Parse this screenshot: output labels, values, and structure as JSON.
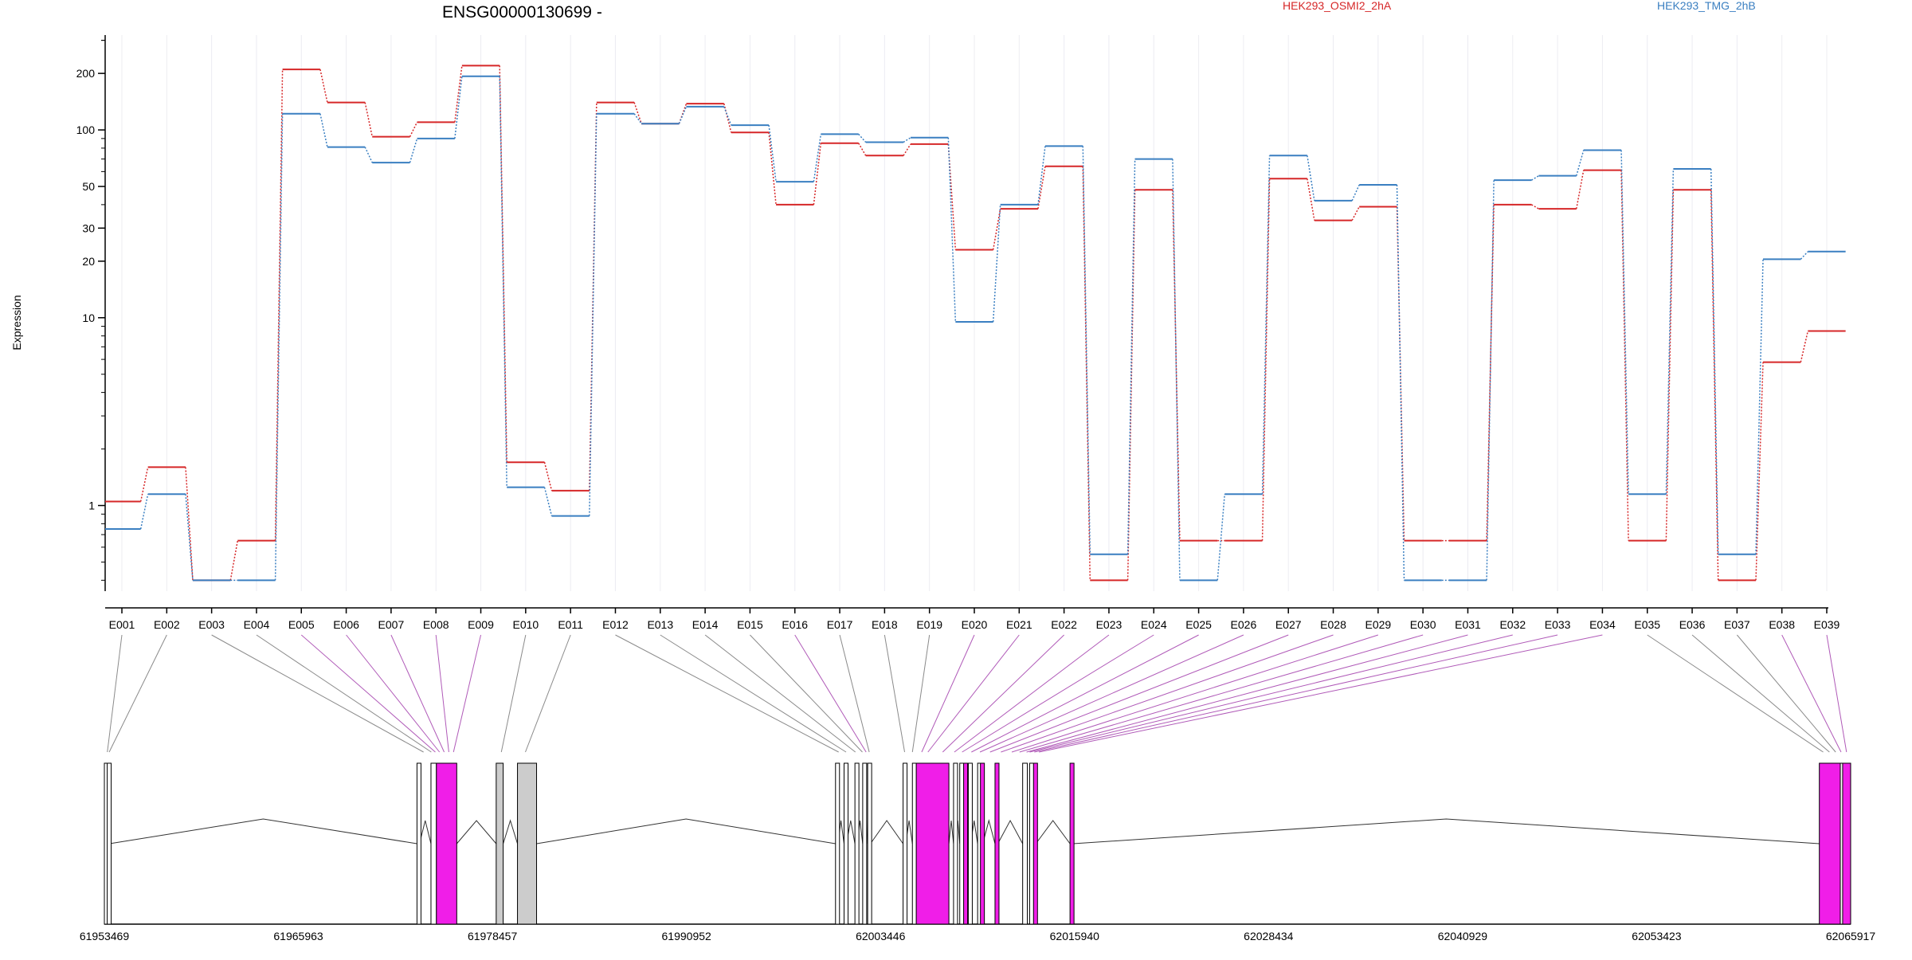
{
  "chart_data": {
    "type": "line",
    "title": "ENSG00000130699 -",
    "ylabel": "Expression",
    "yscale": "log",
    "ylim": [
      0.35,
      320
    ],
    "yticks": [
      1,
      10,
      20,
      30,
      50,
      100,
      200
    ],
    "categories": [
      "E001",
      "E002",
      "E003",
      "E004",
      "E005",
      "E006",
      "E007",
      "E008",
      "E009",
      "E010",
      "E011",
      "E012",
      "E013",
      "E014",
      "E015",
      "E016",
      "E017",
      "E018",
      "E019",
      "E020",
      "E021",
      "E022",
      "E023",
      "E024",
      "E025",
      "E026",
      "E027",
      "E028",
      "E029",
      "E030",
      "E031",
      "E032",
      "E033",
      "E034",
      "E035",
      "E036",
      "E037",
      "E038",
      "E039"
    ],
    "series": [
      {
        "name": "HEK293_OSMI2_2hA",
        "color": "#d62728",
        "values": [
          1.05,
          1.6,
          0.4,
          0.65,
          210,
          140,
          92,
          110,
          220,
          1.7,
          1.2,
          140,
          108,
          138,
          97,
          40,
          85,
          73,
          84,
          23,
          38,
          64,
          0.4,
          48,
          0.65,
          0.65,
          55,
          33,
          39,
          0.65,
          0.65,
          40,
          38,
          61,
          0.65,
          48,
          0.4,
          5.8,
          8.5
        ]
      },
      {
        "name": "HEK293_TMG_2hB",
        "color": "#3a7fc1",
        "values": [
          0.75,
          1.15,
          0.4,
          0.4,
          122,
          81,
          67,
          90,
          193,
          1.25,
          0.88,
          122,
          108,
          133,
          106,
          53,
          95,
          86,
          91,
          9.5,
          40,
          82,
          0.55,
          70,
          0.4,
          1.15,
          73,
          42,
          51,
          0.4,
          0.4,
          54,
          57,
          78,
          1.15,
          62,
          0.55,
          20.5,
          22.5
        ]
      }
    ],
    "genome_axis": {
      "tick_labels": [
        "61953469",
        "61965963",
        "61978457",
        "61990952",
        "62003446",
        "62015940",
        "62028434",
        "62040929",
        "62053423",
        "62065917"
      ]
    },
    "exon_colors": {
      "differential": "#f01ee8",
      "normal": "#ffffff",
      "retained": "#cccccc"
    },
    "exon_connections": [
      {
        "exon": "E001",
        "g": 61953660,
        "hl": false
      },
      {
        "exon": "E002",
        "g": 61953780,
        "hl": false
      },
      {
        "exon": "E003",
        "g": 61974020,
        "hl": false
      },
      {
        "exon": "E004",
        "g": 61974520,
        "hl": false
      },
      {
        "exon": "E005",
        "g": 61974780,
        "hl": true
      },
      {
        "exon": "E006",
        "g": 61975050,
        "hl": true
      },
      {
        "exon": "E007",
        "g": 61975350,
        "hl": true
      },
      {
        "exon": "E008",
        "g": 61975650,
        "hl": true
      },
      {
        "exon": "E009",
        "g": 61975950,
        "hl": true
      },
      {
        "exon": "E010",
        "g": 61979030,
        "hl": false
      },
      {
        "exon": "E011",
        "g": 61980580,
        "hl": false
      },
      {
        "exon": "E012",
        "g": 62000750,
        "hl": false
      },
      {
        "exon": "E013",
        "g": 62001230,
        "hl": false
      },
      {
        "exon": "E014",
        "g": 62001830,
        "hl": false
      },
      {
        "exon": "E015",
        "g": 62002280,
        "hl": false
      },
      {
        "exon": "E016",
        "g": 62002520,
        "hl": true
      },
      {
        "exon": "E017",
        "g": 62002720,
        "hl": false
      },
      {
        "exon": "E018",
        "g": 62005000,
        "hl": false
      },
      {
        "exon": "E019",
        "g": 62005500,
        "hl": false
      },
      {
        "exon": "E020",
        "g": 62006100,
        "hl": true
      },
      {
        "exon": "E021",
        "g": 62006500,
        "hl": true
      },
      {
        "exon": "E022",
        "g": 62007450,
        "hl": true
      },
      {
        "exon": "E023",
        "g": 62008200,
        "hl": true
      },
      {
        "exon": "E024",
        "g": 62008700,
        "hl": true
      },
      {
        "exon": "E025",
        "g": 62009300,
        "hl": true
      },
      {
        "exon": "E026",
        "g": 62009850,
        "hl": true
      },
      {
        "exon": "E027",
        "g": 62010500,
        "hl": true
      },
      {
        "exon": "E028",
        "g": 62011200,
        "hl": true
      },
      {
        "exon": "E029",
        "g": 62011900,
        "hl": true
      },
      {
        "exon": "E030",
        "g": 62012400,
        "hl": true
      },
      {
        "exon": "E031",
        "g": 62012850,
        "hl": true
      },
      {
        "exon": "E032",
        "g": 62013050,
        "hl": true
      },
      {
        "exon": "E033",
        "g": 62013350,
        "hl": true
      },
      {
        "exon": "E034",
        "g": 62013650,
        "hl": true
      },
      {
        "exon": "E035",
        "g": 62064150,
        "hl": false
      },
      {
        "exon": "E036",
        "g": 62064550,
        "hl": false
      },
      {
        "exon": "E037",
        "g": 62064950,
        "hl": false
      },
      {
        "exon": "E038",
        "g": 62065300,
        "hl": true
      },
      {
        "exon": "E039",
        "g": 62065650,
        "hl": true
      }
    ],
    "exon_blocks": [
      {
        "start": 61953469,
        "end": 61953650,
        "fill": "normal"
      },
      {
        "start": 61953650,
        "end": 61953800,
        "fill": "normal"
      },
      {
        "start": 61973600,
        "end": 61973760,
        "fill": "normal"
      },
      {
        "start": 61974500,
        "end": 61974850,
        "fill": "normal"
      },
      {
        "start": 61974850,
        "end": 61976160,
        "fill": "differential"
      },
      {
        "start": 61978700,
        "end": 61979150,
        "fill": "retained"
      },
      {
        "start": 61980070,
        "end": 61981300,
        "fill": "retained"
      },
      {
        "start": 62000550,
        "end": 62000700,
        "fill": "normal"
      },
      {
        "start": 62001100,
        "end": 62001250,
        "fill": "normal"
      },
      {
        "start": 62001800,
        "end": 62001950,
        "fill": "normal"
      },
      {
        "start": 62002300,
        "end": 62002450,
        "fill": "normal"
      },
      {
        "start": 62002620,
        "end": 62002800,
        "fill": "normal"
      },
      {
        "start": 62004900,
        "end": 62005070,
        "fill": "normal"
      },
      {
        "start": 62005500,
        "end": 62005650,
        "fill": "normal"
      },
      {
        "start": 62005750,
        "end": 62007850,
        "fill": "differential"
      },
      {
        "start": 62008150,
        "end": 62008300,
        "fill": "normal"
      },
      {
        "start": 62008550,
        "end": 62008700,
        "fill": "normal"
      },
      {
        "start": 62008800,
        "end": 62008950,
        "fill": "differential"
      },
      {
        "start": 62009100,
        "end": 62009250,
        "fill": "normal"
      },
      {
        "start": 62009700,
        "end": 62009850,
        "fill": "normal"
      },
      {
        "start": 62009880,
        "end": 62010030,
        "fill": "differential"
      },
      {
        "start": 62010820,
        "end": 62011000,
        "fill": "differential"
      },
      {
        "start": 62012600,
        "end": 62012900,
        "fill": "normal"
      },
      {
        "start": 62013050,
        "end": 62013250,
        "fill": "normal"
      },
      {
        "start": 62013300,
        "end": 62013450,
        "fill": "differential"
      },
      {
        "start": 62015650,
        "end": 62015850,
        "fill": "differential"
      },
      {
        "start": 62063900,
        "end": 62065250,
        "fill": "differential"
      },
      {
        "start": 62065250,
        "end": 62065350,
        "fill": "normal"
      },
      {
        "start": 62065400,
        "end": 62065917,
        "fill": "differential"
      }
    ]
  }
}
